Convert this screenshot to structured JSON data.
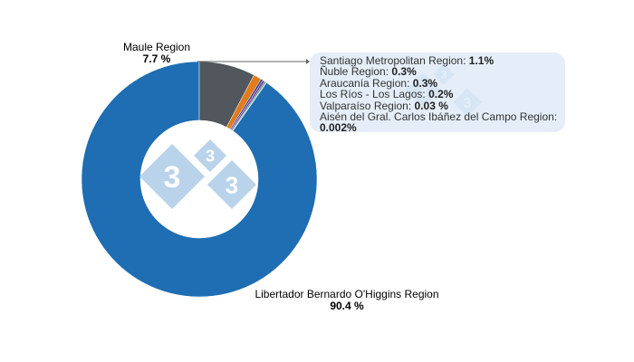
{
  "chart_data": {
    "type": "pie",
    "variant": "donut",
    "slices": [
      {
        "label": "Libertador Bernardo O'Higgins Region",
        "value": 90.4,
        "display": "90.4 %",
        "color": "#1f6db2"
      },
      {
        "label": "Maule Region",
        "value": 7.7,
        "display": "7.7 %",
        "color": "#51575c"
      },
      {
        "label": "Santiago Metropolitan Region",
        "value": 1.1,
        "display": "1.1%",
        "color": "#e07b1e"
      },
      {
        "label": "Ñuble Region",
        "value": 0.3,
        "display": "0.3%",
        "color": "#3c3f8f"
      },
      {
        "label": "Araucanía Region",
        "value": 0.3,
        "display": "0.3%",
        "color": "#7b3f8f"
      },
      {
        "label": "Los Ríos - Los Lagos",
        "value": 0.2,
        "display": "0.2%",
        "color": "#2a9d8f"
      },
      {
        "label": "Valparaíso Region",
        "value": 0.03,
        "display": "0.03 %",
        "color": "#c0392b"
      },
      {
        "label": "Aisén del Gral. Carlos Ibáñez del Campo Region",
        "value": 0.002,
        "display": "0.002%",
        "color": "#8c564b"
      }
    ],
    "callout_slices": [
      2,
      3,
      4,
      5,
      6,
      7
    ]
  },
  "watermark": {
    "text": "3",
    "color": "#b9d3ea"
  }
}
